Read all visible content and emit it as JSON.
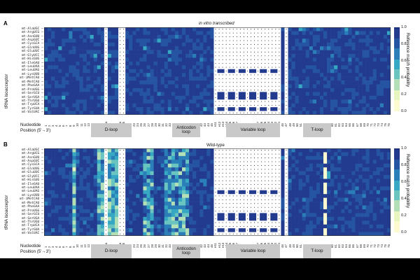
{
  "figure": {
    "panels": [
      {
        "letter": "A",
        "title": "in vitro transcribed"
      },
      {
        "letter": "B",
        "title": "Wild-type"
      }
    ],
    "y_axis_label": "tRNA isoacceptor",
    "x_axis_label_1": "Nucleotide",
    "x_axis_label_2": "Position (5'→3')",
    "regions": [
      {
        "name": "D-loop",
        "label": "D-loop"
      },
      {
        "name": "anticodon-loop",
        "label": "Anticodon loop"
      },
      {
        "name": "variable-loop",
        "label": "Variable loop"
      },
      {
        "name": "t-loop",
        "label": "T-loop"
      }
    ],
    "colorbar": {
      "title": "Reference match probability",
      "ticks": [
        "0.0",
        "0.2",
        "0.4",
        "0.6",
        "0.8",
        "1.0"
      ],
      "colors": [
        "#fbfbcf",
        "#e7f5bf",
        "#b3e0b6",
        "#6ac4bf",
        "#37a8c3",
        "#2a7fb8",
        "#2554a3",
        "#233b8f",
        "#1d2f7a"
      ]
    }
  },
  "chart_data": [
    {
      "type": "heatmap",
      "title": "in vitro transcribed",
      "ylabel": "tRNA isoacceptor",
      "xlabel": "Nucleotide Position (5'→3')",
      "value_range": [
        0.0,
        1.0
      ],
      "rows": [
        "mt-AlaUGC",
        "mt-ArgUCG",
        "mt-AsnGUU",
        "mt-AspGUC",
        "mt-CysGCA",
        "mt-GlnUUG",
        "mt-GluUUC",
        "mt-GlyUCC",
        "mt-HisGUG",
        "mt-IleGAU",
        "mt-LeuUAA",
        "mt-LeuUAG",
        "mt-LysUUU",
        "mt-iMetCAU",
        "mt-MetCAU",
        "mt-PheGAA",
        "mt-ProUGG",
        "mt-SerGCU",
        "mt-SerUGA",
        "mt-ThrUGU",
        "mt-TrpUCA",
        "mt-TyrGUA",
        "mt-ValUAC"
      ],
      "columns": [
        "1",
        "2",
        "3",
        "4",
        "5",
        "6",
        "7",
        "8",
        "9",
        "10",
        "11",
        "12",
        "13",
        "14",
        "15",
        "16",
        "17",
        "17a",
        "18",
        "19",
        "20",
        "20a",
        "20b",
        "21",
        "22",
        "23",
        "24",
        "25",
        "26",
        "27",
        "28",
        "29",
        "30",
        "31",
        "32",
        "33",
        "34",
        "35",
        "36",
        "37",
        "38",
        "39",
        "40",
        "41",
        "42",
        "43",
        "44",
        "45",
        "e11",
        "e12",
        "e13",
        "e14",
        "e15",
        "e16",
        "e17",
        "e1",
        "e2",
        "e3",
        "e4",
        "e5",
        "e27",
        "e26",
        "e25",
        "e24",
        "e23",
        "e22",
        "e21",
        "46",
        "47",
        "48",
        "49",
        "50",
        "51",
        "52",
        "53",
        "54",
        "55",
        "56",
        "57",
        "58",
        "59",
        "60",
        "61",
        "62",
        "63",
        "64",
        "65",
        "66",
        "67",
        "68",
        "69",
        "70",
        "71",
        "72",
        "73",
        "74",
        "75",
        "76"
      ],
      "summary": "Mostly high match probability (0.8–1.0) across all positions; white cells with dots mark absent positions (D-loop gaps, variable loop, position 48); a few lower cells in the D-loop and anticodon regions."
    },
    {
      "type": "heatmap",
      "title": "Wild-type",
      "ylabel": "tRNA isoacceptor",
      "xlabel": "Nucleotide Position (5'→3')",
      "value_range": [
        0.0,
        1.0
      ],
      "rows": [
        "mt-AlaUGC",
        "mt-ArgUCG",
        "mt-AsnGUU",
        "mt-AspGUC",
        "mt-CysGCA",
        "mt-GlnUUG",
        "mt-GluUUC",
        "mt-GlyUCC",
        "mt-HisGUG",
        "mt-IleGAU",
        "mt-LeuUAA",
        "mt-LeuUAG",
        "mt-LysUUU",
        "mt-iMetCAU",
        "mt-MetCAU",
        "mt-PheGAA",
        "mt-ProUGG",
        "mt-SerGCU",
        "mt-SerUGA",
        "mt-ThrUGU",
        "mt-TrpUCA",
        "mt-TyrGUA",
        "mt-ValUAC"
      ],
      "columns": [
        "1",
        "2",
        "3",
        "4",
        "5",
        "6",
        "7",
        "8",
        "9",
        "10",
        "11",
        "12",
        "13",
        "14",
        "15",
        "16",
        "17",
        "17a",
        "18",
        "19",
        "20",
        "20a",
        "20b",
        "21",
        "22",
        "23",
        "24",
        "25",
        "26",
        "27",
        "28",
        "29",
        "30",
        "31",
        "32",
        "33",
        "34",
        "35",
        "36",
        "37",
        "38",
        "39",
        "40",
        "41",
        "42",
        "43",
        "44",
        "45",
        "e11",
        "e12",
        "e13",
        "e14",
        "e15",
        "e16",
        "e17",
        "e1",
        "e2",
        "e3",
        "e4",
        "e5",
        "e27",
        "e26",
        "e25",
        "e24",
        "e23",
        "e22",
        "e21",
        "46",
        "47",
        "48",
        "49",
        "50",
        "51",
        "52",
        "53",
        "54",
        "55",
        "56",
        "57",
        "58",
        "59",
        "60",
        "61",
        "62",
        "63",
        "64",
        "65",
        "66",
        "67",
        "68",
        "69",
        "70",
        "71",
        "72",
        "73",
        "74",
        "75",
        "76"
      ],
      "summary": "Lower match probabilities (0.2–0.6) concentrated at positions 9, 16–20 (D-loop), 26–28 and 32–38 (anticodon loop) and position 58 in the T-loop; elsewhere 0.8–1.0."
    }
  ]
}
